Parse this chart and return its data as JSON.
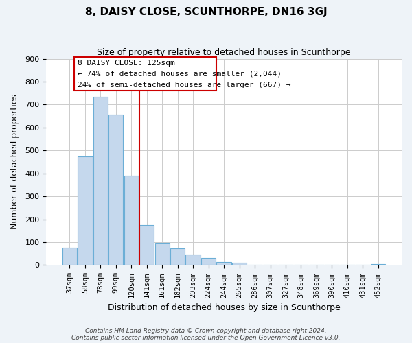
{
  "title": "8, DAISY CLOSE, SCUNTHORPE, DN16 3GJ",
  "subtitle": "Size of property relative to detached houses in Scunthorpe",
  "xlabel": "Distribution of detached houses by size in Scunthorpe",
  "ylabel": "Number of detached properties",
  "bin_labels": [
    "37sqm",
    "58sqm",
    "78sqm",
    "99sqm",
    "120sqm",
    "141sqm",
    "161sqm",
    "182sqm",
    "203sqm",
    "224sqm",
    "244sqm",
    "265sqm",
    "286sqm",
    "307sqm",
    "327sqm",
    "348sqm",
    "369sqm",
    "390sqm",
    "410sqm",
    "431sqm",
    "452sqm"
  ],
  "bar_values": [
    75,
    475,
    735,
    655,
    390,
    175,
    97,
    74,
    45,
    32,
    13,
    10,
    2,
    1,
    0,
    0,
    0,
    0,
    0,
    0,
    5
  ],
  "bar_color": "#c5d8ed",
  "bar_edge_color": "#6baed6",
  "vline_x": 4.5,
  "vline_color": "#cc0000",
  "annotation_title": "8 DAISY CLOSE: 125sqm",
  "annotation_line1": "← 74% of detached houses are smaller (2,044)",
  "annotation_line2": "24% of semi-detached houses are larger (667) →",
  "annotation_box_color": "#cc0000",
  "ylim": [
    0,
    900
  ],
  "yticks": [
    0,
    100,
    200,
    300,
    400,
    500,
    600,
    700,
    800,
    900
  ],
  "footer1": "Contains HM Land Registry data © Crown copyright and database right 2024.",
  "footer2": "Contains public sector information licensed under the Open Government Licence v3.0.",
  "bg_color": "#eef3f8",
  "plot_bg_color": "#ffffff"
}
